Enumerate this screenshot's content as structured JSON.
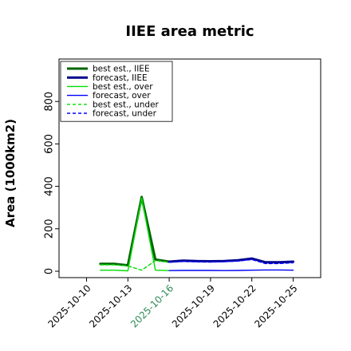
{
  "chart_data": {
    "type": "line",
    "title": "IIEE area metric",
    "xlabel": "",
    "ylabel": "Area (1000km2)",
    "xlim": [
      "2025-10-08",
      "2025-10-27"
    ],
    "ylim": [
      -30,
      1000
    ],
    "yticks": [
      0,
      200,
      400,
      600,
      800
    ],
    "xticks": [
      "2025-10-10",
      "2025-10-13",
      "2025-10-16",
      "2025-10-19",
      "2025-10-22",
      "2025-10-25"
    ],
    "highlight_tick": "2025-10-16",
    "highlight_color": "#2e8b57",
    "grid": false,
    "legend_position": "top-left",
    "series": [
      {
        "name": "best est., IIEE",
        "color": "#006400",
        "style": "solid",
        "weight": "thick",
        "x": [
          "2025-10-11",
          "2025-10-12",
          "2025-10-13",
          "2025-10-14",
          "2025-10-15",
          "2025-10-16"
        ],
        "y": [
          35,
          35,
          28,
          350,
          55,
          45
        ]
      },
      {
        "name": "forecast, IIEE",
        "color": "#00008b",
        "style": "solid",
        "weight": "thick",
        "x": [
          "2025-10-16",
          "2025-10-17",
          "2025-10-18",
          "2025-10-19",
          "2025-10-20",
          "2025-10-21",
          "2025-10-22",
          "2025-10-23",
          "2025-10-24",
          "2025-10-25"
        ],
        "y": [
          45,
          50,
          48,
          47,
          48,
          52,
          60,
          42,
          42,
          45
        ]
      },
      {
        "name": "best est., over",
        "color": "#00dd00",
        "style": "solid",
        "weight": "thin",
        "x": [
          "2025-10-11",
          "2025-10-12",
          "2025-10-13",
          "2025-10-14",
          "2025-10-15",
          "2025-10-16"
        ],
        "y": [
          5,
          5,
          2,
          345,
          5,
          3
        ]
      },
      {
        "name": "forecast, over",
        "color": "#0000ff",
        "style": "solid",
        "weight": "thin",
        "x": [
          "2025-10-16",
          "2025-10-17",
          "2025-10-18",
          "2025-10-19",
          "2025-10-20",
          "2025-10-21",
          "2025-10-22",
          "2025-10-23",
          "2025-10-24",
          "2025-10-25"
        ],
        "y": [
          3,
          4,
          4,
          4,
          3,
          4,
          5,
          6,
          6,
          5
        ]
      },
      {
        "name": "best est., under",
        "color": "#00dd00",
        "style": "dashed",
        "weight": "thin",
        "x": [
          "2025-10-11",
          "2025-10-12",
          "2025-10-13",
          "2025-10-14",
          "2025-10-15",
          "2025-10-16"
        ],
        "y": [
          30,
          30,
          25,
          5,
          50,
          42
        ]
      },
      {
        "name": "forecast, under",
        "color": "#0000ff",
        "style": "dashed",
        "weight": "thin",
        "x": [
          "2025-10-16",
          "2025-10-17",
          "2025-10-18",
          "2025-10-19",
          "2025-10-20",
          "2025-10-21",
          "2025-10-22",
          "2025-10-23",
          "2025-10-24",
          "2025-10-25"
        ],
        "y": [
          42,
          46,
          44,
          43,
          45,
          48,
          55,
          36,
          36,
          40
        ]
      }
    ]
  }
}
